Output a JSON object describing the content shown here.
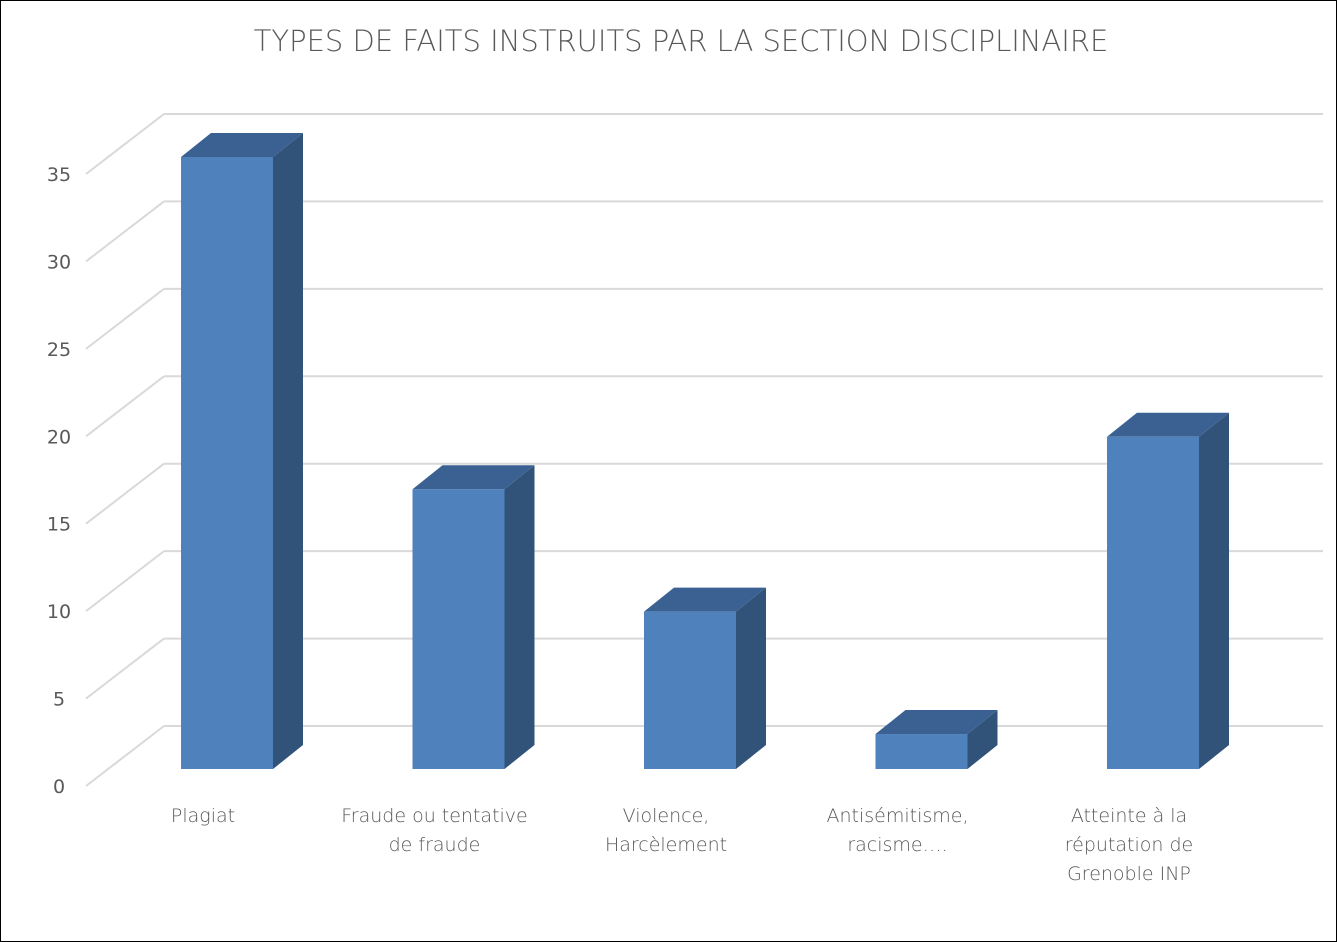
{
  "chart_data": {
    "type": "bar3d",
    "title": "TYPES DE FAITS INSTRUITS PAR LA SECTION DISCIPLINAIRE",
    "categories": [
      "Plagiat",
      "Fraude ou tentative de fraude",
      "Violence, Harcèlement",
      "Antisémitisme, racisme….",
      "Atteinte à la réputation de Grenoble INP"
    ],
    "values": [
      35,
      16,
      9,
      2,
      19
    ],
    "color": "#4f81bd",
    "ylim": [
      0,
      35
    ],
    "yticks": [
      0,
      5,
      10,
      15,
      20,
      25,
      30,
      35
    ],
    "grid": true
  }
}
